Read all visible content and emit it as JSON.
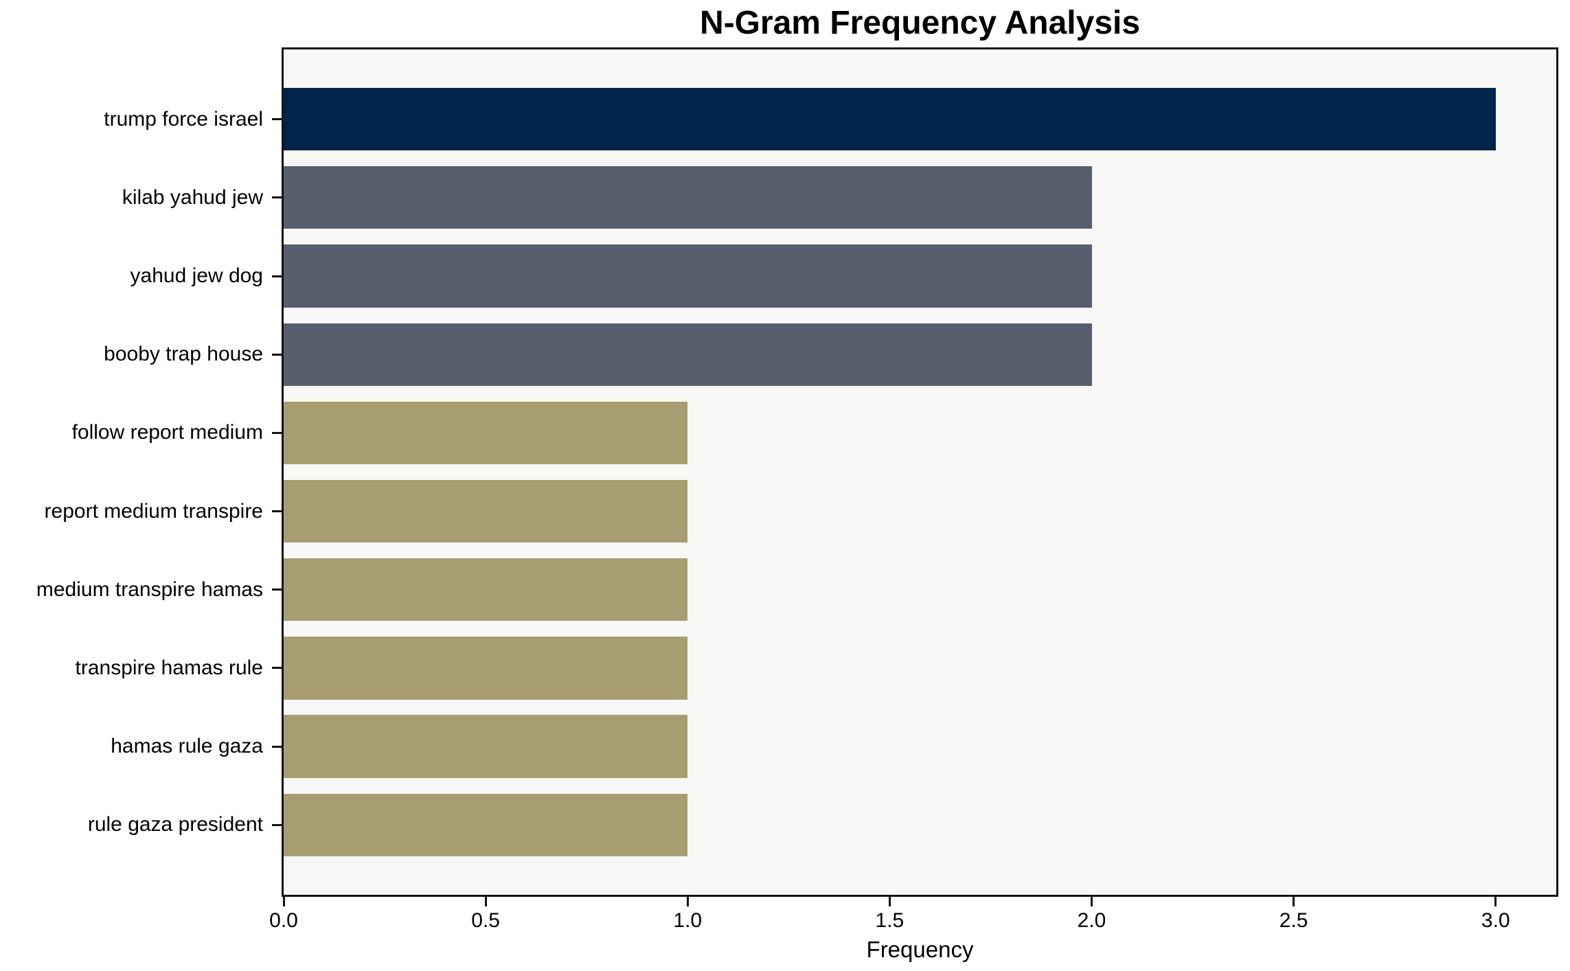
{
  "chart_data": {
    "type": "bar",
    "orientation": "horizontal",
    "title": "N-Gram Frequency Analysis",
    "xlabel": "Frequency",
    "ylabel": "",
    "categories": [
      "trump force israel",
      "kilab yahud jew",
      "yahud jew dog",
      "booby trap house",
      "follow report medium",
      "report medium transpire",
      "medium transpire hamas",
      "transpire hamas rule",
      "hamas rule gaza",
      "rule gaza president"
    ],
    "values": [
      3,
      2,
      2,
      2,
      1,
      1,
      1,
      1,
      1,
      1
    ],
    "bar_colors": [
      "#01234c",
      "#575e6e",
      "#575e6e",
      "#575e6e",
      "#a79d71",
      "#a79d71",
      "#a79d71",
      "#a79d71",
      "#a79d71",
      "#a79d71"
    ],
    "x_ticks": [
      {
        "value": 0.0,
        "label": "0.0"
      },
      {
        "value": 0.5,
        "label": "0.5"
      },
      {
        "value": 1.0,
        "label": "1.0"
      },
      {
        "value": 1.5,
        "label": "1.5"
      },
      {
        "value": 2.0,
        "label": "2.0"
      },
      {
        "value": 2.5,
        "label": "2.5"
      },
      {
        "value": 3.0,
        "label": "3.0"
      }
    ],
    "xlim": [
      0,
      3.15
    ],
    "grid": false,
    "legend": null,
    "plot_background": "#f7f7f5",
    "figure_background": "#ffffff",
    "spine_color": "#141414"
  }
}
